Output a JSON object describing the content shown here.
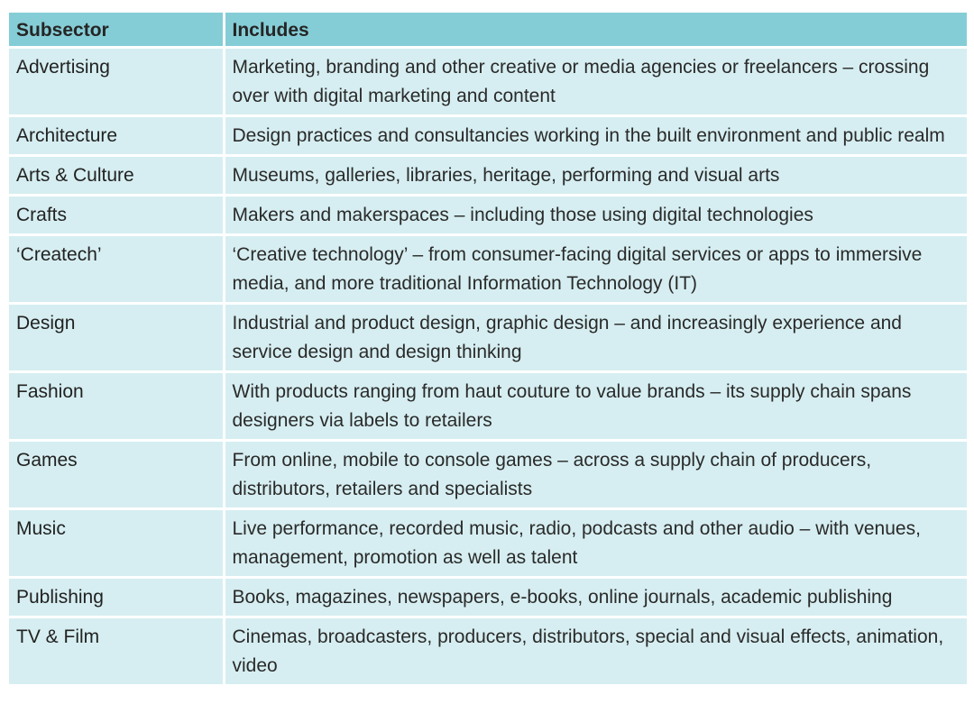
{
  "table": {
    "headers": [
      "Subsector",
      "Includes"
    ],
    "rows": [
      {
        "subsector": "Advertising",
        "includes": "Marketing, branding and other creative or media agencies or freelancers – crossing over with digital marketing and content"
      },
      {
        "subsector": "Architecture",
        "includes": "Design practices and consultancies working in the built environment and public realm"
      },
      {
        "subsector": "Arts & Culture",
        "includes": "Museums, galleries, libraries, heritage, performing and visual arts"
      },
      {
        "subsector": "Crafts",
        "includes": "Makers and makerspaces – including those using digital technologies"
      },
      {
        "subsector": "‘Createch’",
        "includes": "‘Creative technology’ – from consumer-facing digital services or apps to immersive media, and more traditional Information Technology (IT)"
      },
      {
        "subsector": "Design",
        "includes": "Industrial and product design, graphic design – and increasingly experience and service design and design thinking"
      },
      {
        "subsector": "Fashion",
        "includes": "With products ranging from haut couture to value brands – its supply chain spans designers via labels to retailers"
      },
      {
        "subsector": "Games",
        "includes": "From online, mobile to console games – across a supply chain of producers, distributors, retailers and specialists"
      },
      {
        "subsector": "Music",
        "includes": "Live performance, recorded music, radio, podcasts and other audio – with venues, management, promotion as well as talent"
      },
      {
        "subsector": "Publishing",
        "includes": "Books, magazines, newspapers, e-books, online journals, academic publishing"
      },
      {
        "subsector": "TV & Film",
        "includes": "Cinemas, broadcasters, producers, distributors, special and visual effects, animation, video"
      }
    ]
  }
}
